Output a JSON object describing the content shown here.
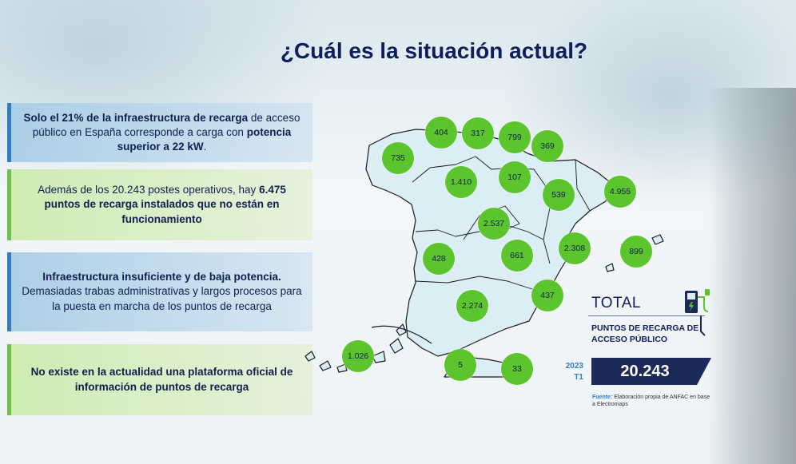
{
  "title": "¿Cuál es la situación actual?",
  "cards": [
    {
      "part1_bold": "Solo el 21% de la infraestructura de recarga",
      "part2": " de acceso público en España corresponde a carga con ",
      "part3_bold": "potencia superior a 22 kW",
      "part4": "."
    },
    {
      "part1": "Además de los 20.243 postes operativos, hay ",
      "part2_bold": "6.475 puntos de recarga instalados que no están en funcionamiento"
    },
    {
      "part1_bold": "Infraestructura insuficiente y de baja potencia.",
      "part2": " Demasiadas trabas administrativas y largos procesos para la puesta en marcha de los puntos de recarga"
    },
    {
      "part1_bold": "No existe en la actualidad una plataforma oficial de información de puntos de recarga"
    }
  ],
  "map": {
    "regions": [
      {
        "name": "Galicia",
        "value": "735"
      },
      {
        "name": "Asturias",
        "value": "404"
      },
      {
        "name": "Cantabria",
        "value": "317"
      },
      {
        "name": "País Vasco",
        "value": "799"
      },
      {
        "name": "Navarra",
        "value": "369"
      },
      {
        "name": "Castilla y León",
        "value": "1.410"
      },
      {
        "name": "La Rioja",
        "value": "107"
      },
      {
        "name": "Aragón",
        "value": "539"
      },
      {
        "name": "Cataluña",
        "value": "4.955"
      },
      {
        "name": "Madrid",
        "value": "2.537"
      },
      {
        "name": "Extremadura",
        "value": "428"
      },
      {
        "name": "Castilla-La Mancha",
        "value": "661"
      },
      {
        "name": "C. Valenciana",
        "value": "2.308"
      },
      {
        "name": "Baleares",
        "value": "899"
      },
      {
        "name": "Murcia",
        "value": "437"
      },
      {
        "name": "Andalucía",
        "value": "2.274"
      },
      {
        "name": "Canarias",
        "value": "1.026"
      },
      {
        "name": "Ceuta",
        "value": "5"
      },
      {
        "name": "Melilla",
        "value": "33"
      }
    ],
    "bubble_color": "#5cc42c"
  },
  "total": {
    "label": "TOTAL",
    "sub": "PUNTOS DE RECARGA DE ACCESO PÚBLICO",
    "year": "2023",
    "quarter": "T1",
    "value": "20.243",
    "box_color": "#1c2a5a"
  },
  "source": {
    "label": "Fuente:",
    "text": " Elaboración propia de ANFAC en base a Electromaps"
  },
  "icons": [
    "charger-icon"
  ]
}
